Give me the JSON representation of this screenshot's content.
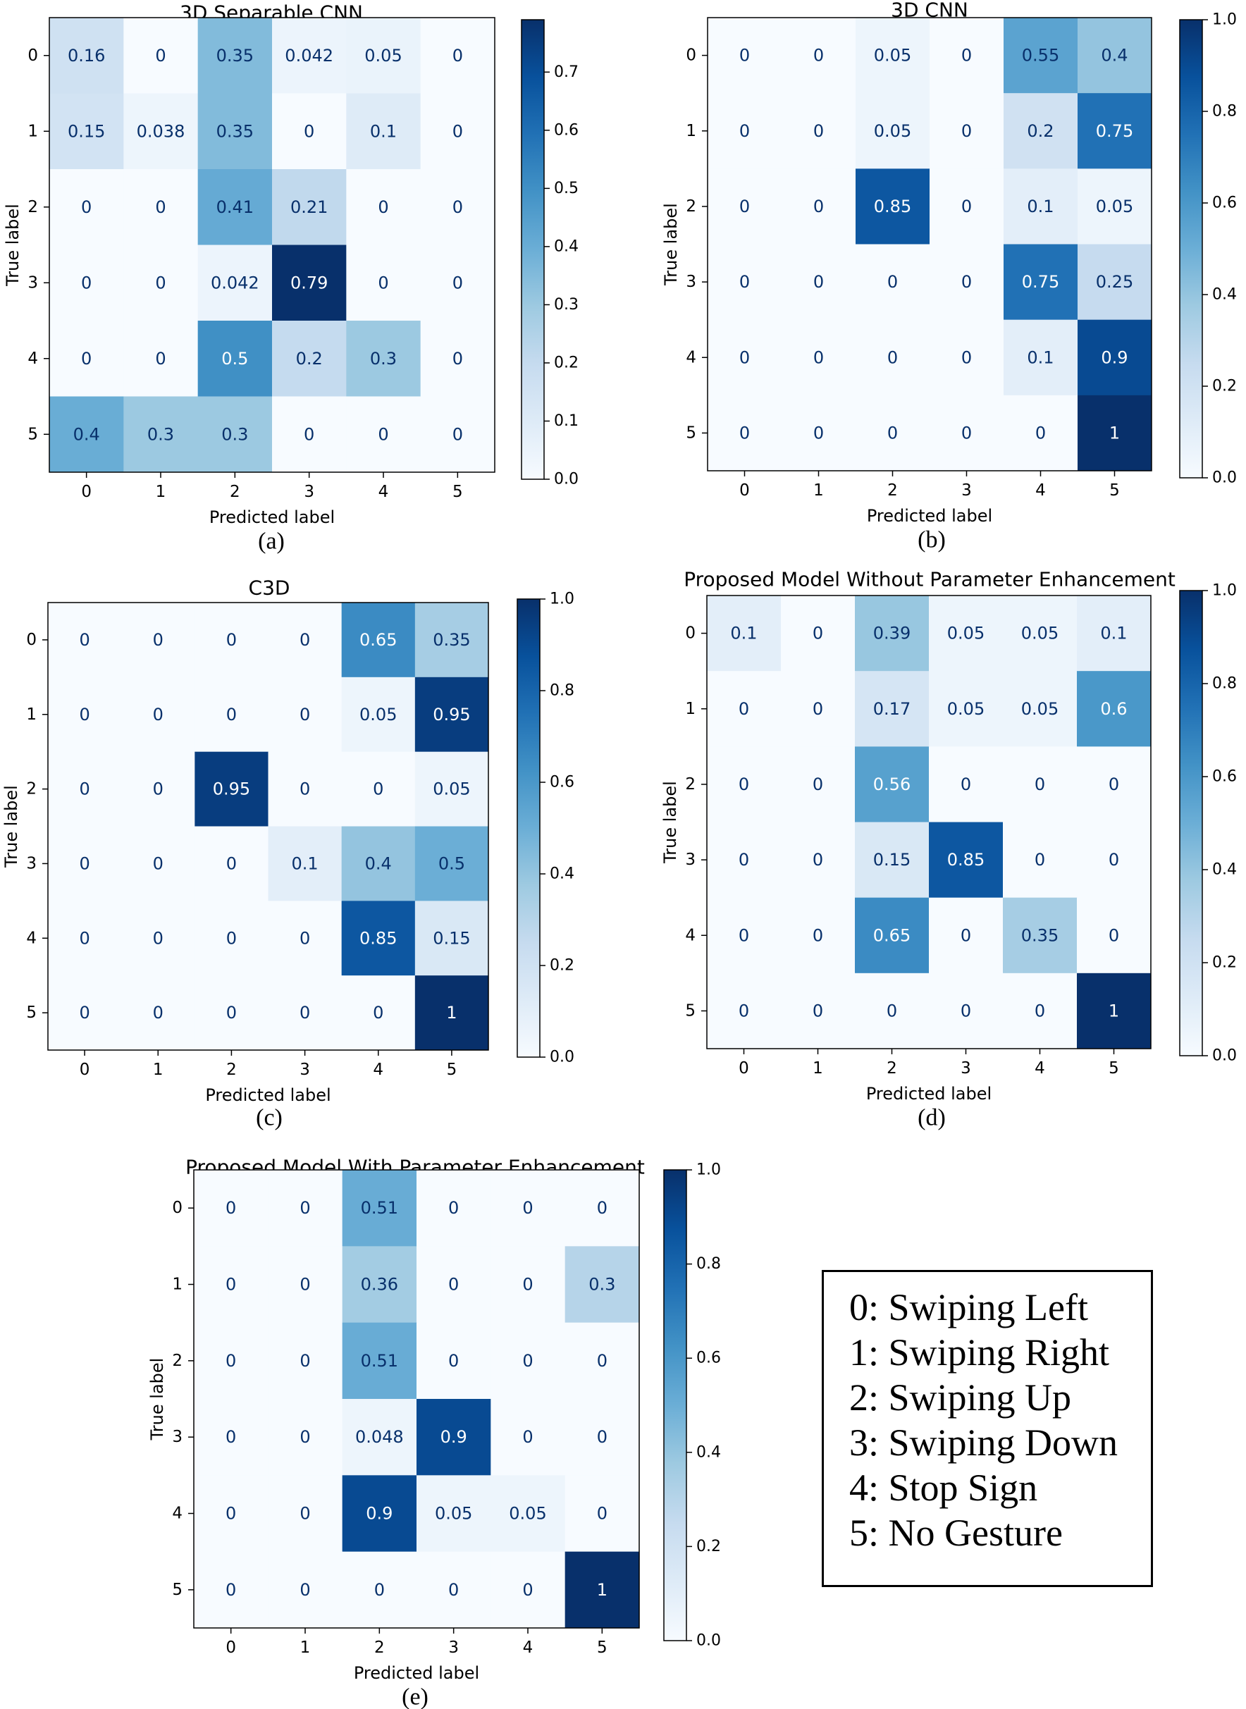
{
  "colors": {
    "low": "#f7fbff",
    "high": "#08306b",
    "frame": "#000000",
    "text_dark": "#08306b",
    "text_light": "#ffffff"
  },
  "classes": [
    {
      "id": "0",
      "name": "Swiping Left"
    },
    {
      "id": "1",
      "name": "Swiping Right"
    },
    {
      "id": "2",
      "name": "Swiping Up"
    },
    {
      "id": "3",
      "name": "Swiping Down"
    },
    {
      "id": "4",
      "name": "Stop Sign"
    },
    {
      "id": "5",
      "name": "No Gesture"
    }
  ],
  "legend_items": [
    "0: Swiping Left",
    "1: Swiping Right",
    "2: Swiping Up",
    "3: Swiping Down",
    "4: Stop Sign",
    "5: No Gesture"
  ],
  "chart_data": [
    {
      "type": "heatmap",
      "panel": "(a)",
      "title": "3D Separable CNN",
      "xlabel": "Predicted label",
      "ylabel": "True label",
      "categories": [
        "0",
        "1",
        "2",
        "3",
        "4",
        "5"
      ],
      "values": [
        [
          "0.16",
          "0",
          "0.35",
          "0.042",
          "0.05",
          "0"
        ],
        [
          "0.15",
          "0.038",
          "0.35",
          "0",
          "0.1",
          "0"
        ],
        [
          "0",
          "0",
          "0.41",
          "0.21",
          "0",
          "0"
        ],
        [
          "0",
          "0",
          "0.042",
          "0.79",
          "0",
          "0"
        ],
        [
          "0",
          "0",
          "0.5",
          "0.2",
          "0.3",
          "0"
        ],
        [
          "0.4",
          "0.3",
          "0.3",
          "0",
          "0",
          "0"
        ]
      ],
      "vmin": 0,
      "vmax": 0.79,
      "colorbar_ticks": [
        "0.0",
        "0.1",
        "0.2",
        "0.3",
        "0.4",
        "0.5",
        "0.6",
        "0.7"
      ]
    },
    {
      "type": "heatmap",
      "panel": "(b)",
      "title": "3D CNN",
      "xlabel": "Predicted label",
      "ylabel": "True label",
      "categories": [
        "0",
        "1",
        "2",
        "3",
        "4",
        "5"
      ],
      "values": [
        [
          "0",
          "0",
          "0.05",
          "0",
          "0.55",
          "0.4"
        ],
        [
          "0",
          "0",
          "0.05",
          "0",
          "0.2",
          "0.75"
        ],
        [
          "0",
          "0",
          "0.85",
          "0",
          "0.1",
          "0.05"
        ],
        [
          "0",
          "0",
          "0",
          "0",
          "0.75",
          "0.25"
        ],
        [
          "0",
          "0",
          "0",
          "0",
          "0.1",
          "0.9"
        ],
        [
          "0",
          "0",
          "0",
          "0",
          "0",
          "1"
        ]
      ],
      "vmin": 0,
      "vmax": 1,
      "colorbar_ticks": [
        "0.0",
        "0.2",
        "0.4",
        "0.6",
        "0.8",
        "1.0"
      ]
    },
    {
      "type": "heatmap",
      "panel": "(c)",
      "title": "C3D",
      "xlabel": "Predicted label",
      "ylabel": "True label",
      "categories": [
        "0",
        "1",
        "2",
        "3",
        "4",
        "5"
      ],
      "values": [
        [
          "0",
          "0",
          "0",
          "0",
          "0.65",
          "0.35"
        ],
        [
          "0",
          "0",
          "0",
          "0",
          "0.05",
          "0.95"
        ],
        [
          "0",
          "0",
          "0.95",
          "0",
          "0",
          "0.05"
        ],
        [
          "0",
          "0",
          "0",
          "0.1",
          "0.4",
          "0.5"
        ],
        [
          "0",
          "0",
          "0",
          "0",
          "0.85",
          "0.15"
        ],
        [
          "0",
          "0",
          "0",
          "0",
          "0",
          "1"
        ]
      ],
      "vmin": 0,
      "vmax": 1,
      "colorbar_ticks": [
        "0.0",
        "0.2",
        "0.4",
        "0.6",
        "0.8",
        "1.0"
      ]
    },
    {
      "type": "heatmap",
      "panel": "(d)",
      "title": "Proposed Model Without Parameter Enhancement",
      "xlabel": "Predicted label",
      "ylabel": "True label",
      "categories": [
        "0",
        "1",
        "2",
        "3",
        "4",
        "5"
      ],
      "values": [
        [
          "0.1",
          "0",
          "0.39",
          "0.05",
          "0.05",
          "0.1"
        ],
        [
          "0",
          "0",
          "0.17",
          "0.05",
          "0.05",
          "0.6"
        ],
        [
          "0",
          "0",
          "0.56",
          "0",
          "0",
          "0"
        ],
        [
          "0",
          "0",
          "0.15",
          "0.85",
          "0",
          "0"
        ],
        [
          "0",
          "0",
          "0.65",
          "0",
          "0.35",
          "0"
        ],
        [
          "0",
          "0",
          "0",
          "0",
          "0",
          "1"
        ]
      ],
      "vmin": 0,
      "vmax": 1,
      "colorbar_ticks": [
        "0.0",
        "0.2",
        "0.4",
        "0.6",
        "0.8",
        "1.0"
      ]
    },
    {
      "type": "heatmap",
      "panel": "(e)",
      "title": "Proposed Model With Parameter Enhancement",
      "xlabel": "Predicted label",
      "ylabel": "True label",
      "categories": [
        "0",
        "1",
        "2",
        "3",
        "4",
        "5"
      ],
      "values": [
        [
          "0",
          "0",
          "0.51",
          "0",
          "0",
          "0"
        ],
        [
          "0",
          "0",
          "0.36",
          "0",
          "0",
          "0.3"
        ],
        [
          "0",
          "0",
          "0.51",
          "0",
          "0",
          "0"
        ],
        [
          "0",
          "0",
          "0.048",
          "0.9",
          "0",
          "0"
        ],
        [
          "0",
          "0",
          "0.9",
          "0.05",
          "0.05",
          "0"
        ],
        [
          "0",
          "0",
          "0",
          "0",
          "0",
          "1"
        ]
      ],
      "vmin": 0,
      "vmax": 1,
      "colorbar_ticks": [
        "0.0",
        "0.2",
        "0.4",
        "0.6",
        "0.8",
        "1.0"
      ]
    }
  ]
}
